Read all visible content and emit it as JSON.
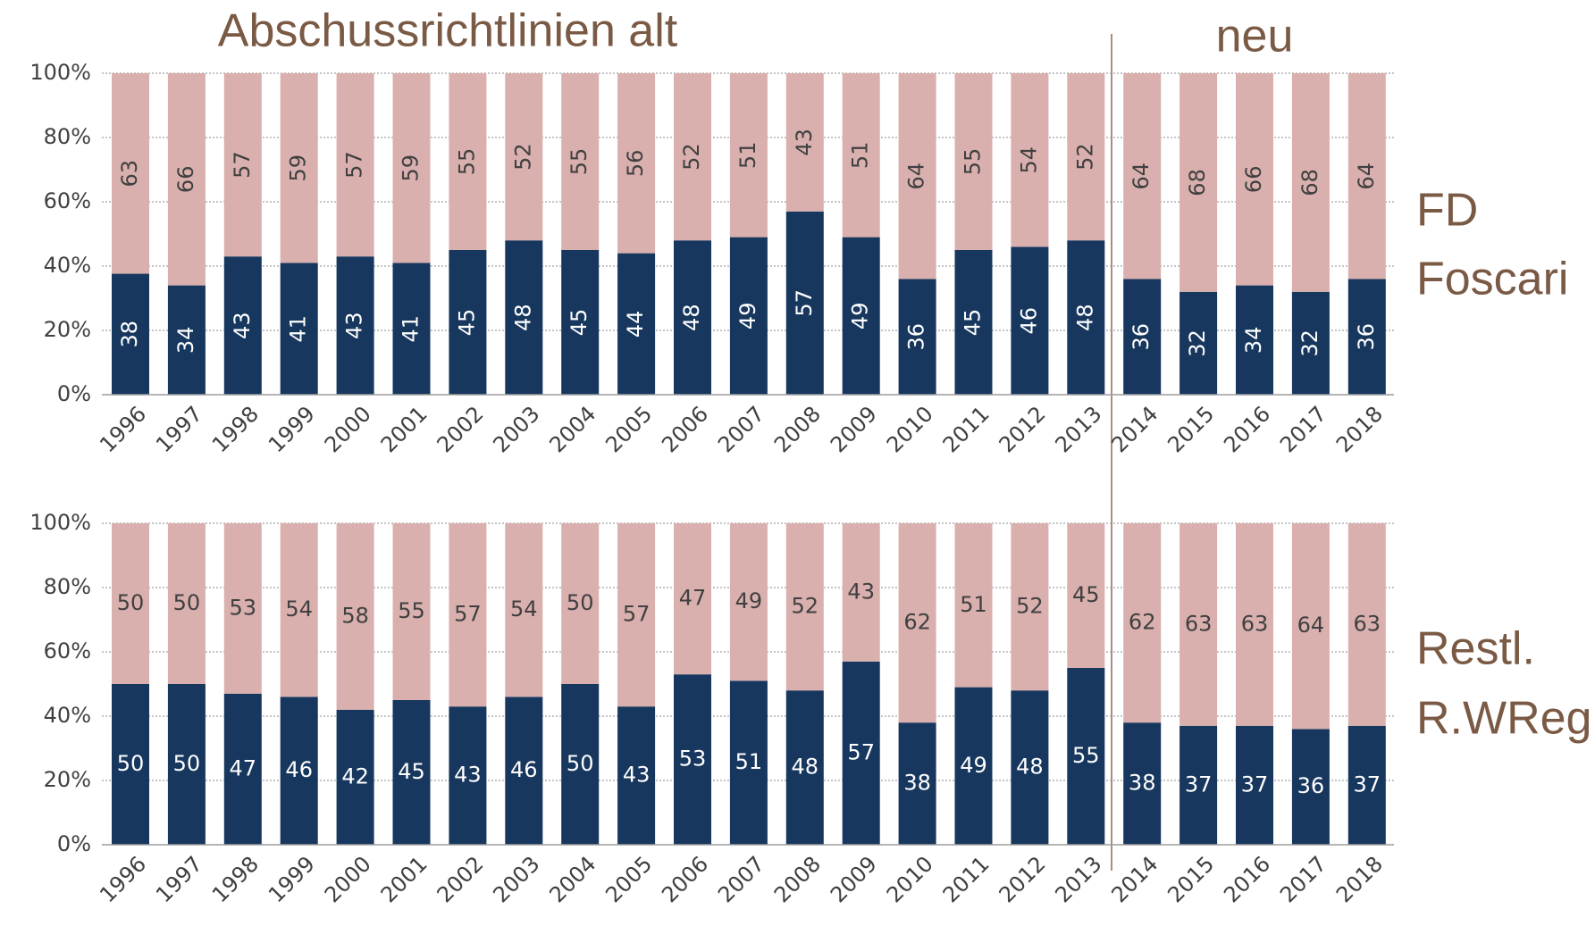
{
  "header": {
    "left": "Abschussrichtlinien alt",
    "right": "neu"
  },
  "chart_data": [
    {
      "type": "bar",
      "stacking": "percent",
      "value_label_rotation": -90,
      "label_lines": [
        "FD",
        "Foscari"
      ],
      "categories": [
        "1996",
        "1997",
        "1998",
        "1999",
        "2000",
        "2001",
        "2002",
        "2003",
        "2004",
        "2005",
        "2006",
        "2007",
        "2008",
        "2009",
        "2010",
        "2011",
        "2012",
        "2013",
        "2014",
        "2015",
        "2016",
        "2017",
        "2018"
      ],
      "series": [
        {
          "color": "#17375e",
          "label_color": "#ffffff",
          "values": [
            38,
            34,
            43,
            41,
            43,
            41,
            45,
            48,
            45,
            44,
            48,
            49,
            57,
            49,
            36,
            45,
            46,
            48,
            36,
            32,
            34,
            32,
            36
          ]
        },
        {
          "color": "#d9b0ae",
          "label_color": "#404040",
          "values": [
            63,
            66,
            57,
            59,
            57,
            59,
            55,
            52,
            55,
            56,
            52,
            51,
            43,
            51,
            64,
            55,
            54,
            52,
            64,
            68,
            66,
            68,
            64
          ]
        }
      ],
      "ylim": [
        0,
        100
      ],
      "yticks": [
        {
          "value": 0,
          "label": "0%"
        },
        {
          "value": 20,
          "label": "20%"
        },
        {
          "value": 40,
          "label": "40%"
        },
        {
          "value": 60,
          "label": "60%"
        },
        {
          "value": 80,
          "label": "80%"
        },
        {
          "value": 100,
          "label": "100%"
        }
      ],
      "grid": true
    },
    {
      "type": "bar",
      "stacking": "percent",
      "value_label_rotation": 0,
      "label_lines": [
        "Restl.",
        "R.WReg"
      ],
      "categories": [
        "1996",
        "1997",
        "1998",
        "1999",
        "2000",
        "2001",
        "2002",
        "2003",
        "2004",
        "2005",
        "2006",
        "2007",
        "2008",
        "2009",
        "2010",
        "2011",
        "2012",
        "2013",
        "2014",
        "2015",
        "2016",
        "2017",
        "2018"
      ],
      "series": [
        {
          "color": "#17375e",
          "label_color": "#ffffff",
          "values": [
            50,
            50,
            47,
            46,
            42,
            45,
            43,
            46,
            50,
            43,
            53,
            51,
            48,
            57,
            38,
            49,
            48,
            55,
            38,
            37,
            37,
            36,
            37
          ]
        },
        {
          "color": "#d9b0ae",
          "label_color": "#404040",
          "values": [
            50,
            50,
            53,
            54,
            58,
            55,
            57,
            54,
            50,
            57,
            47,
            49,
            52,
            43,
            62,
            51,
            52,
            45,
            62,
            63,
            63,
            64,
            63
          ]
        }
      ],
      "ylim": [
        0,
        100
      ],
      "yticks": [
        {
          "value": 0,
          "label": "0%"
        },
        {
          "value": 20,
          "label": "20%"
        },
        {
          "value": 40,
          "label": "40%"
        },
        {
          "value": 60,
          "label": "60%"
        },
        {
          "value": 80,
          "label": "80%"
        },
        {
          "value": 100,
          "label": "100%"
        }
      ],
      "grid": true
    }
  ]
}
